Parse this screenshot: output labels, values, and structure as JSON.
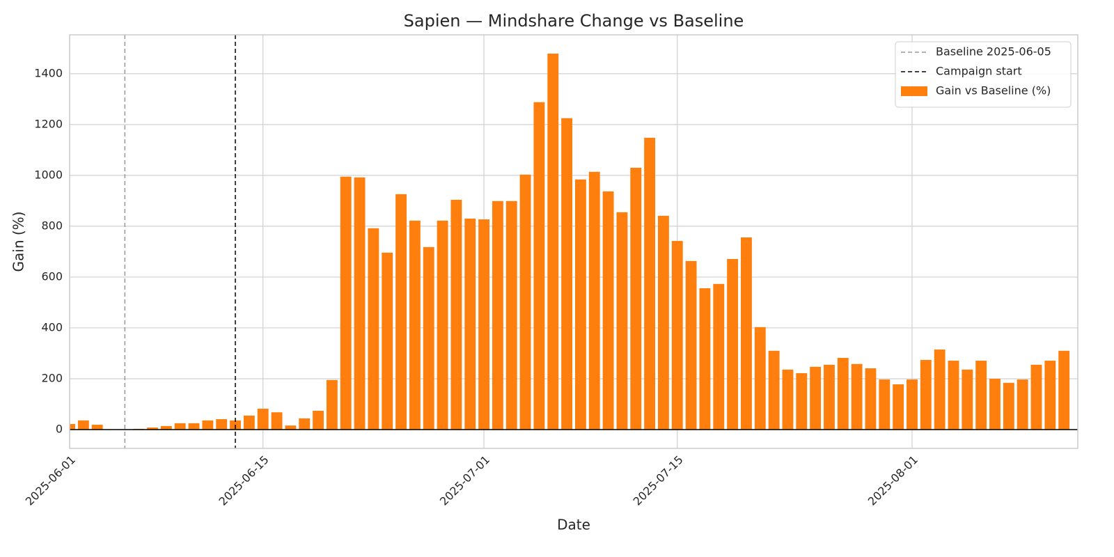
{
  "chart_data": {
    "type": "bar",
    "title": "Sapien — Mindshare Change vs Baseline",
    "xlabel": "Date",
    "ylabel": "Gain (%)",
    "x": [
      "2025-06-01",
      "2025-06-02",
      "2025-06-03",
      "2025-06-04",
      "2025-06-05",
      "2025-06-06",
      "2025-06-07",
      "2025-06-08",
      "2025-06-09",
      "2025-06-10",
      "2025-06-11",
      "2025-06-12",
      "2025-06-13",
      "2025-06-14",
      "2025-06-15",
      "2025-06-16",
      "2025-06-17",
      "2025-06-18",
      "2025-06-19",
      "2025-06-20",
      "2025-06-21",
      "2025-06-22",
      "2025-06-23",
      "2025-06-24",
      "2025-06-25",
      "2025-06-26",
      "2025-06-27",
      "2025-06-28",
      "2025-06-29",
      "2025-06-30",
      "2025-07-01",
      "2025-07-02",
      "2025-07-03",
      "2025-07-04",
      "2025-07-05",
      "2025-07-06",
      "2025-07-07",
      "2025-07-08",
      "2025-07-09",
      "2025-07-10",
      "2025-07-11",
      "2025-07-12",
      "2025-07-13",
      "2025-07-14",
      "2025-07-15",
      "2025-07-16",
      "2025-07-17",
      "2025-07-18",
      "2025-07-19",
      "2025-07-20",
      "2025-07-21",
      "2025-07-22",
      "2025-07-23",
      "2025-07-24",
      "2025-07-25",
      "2025-07-26",
      "2025-07-27",
      "2025-07-28",
      "2025-07-29",
      "2025-07-30",
      "2025-07-31",
      "2025-08-01",
      "2025-08-02",
      "2025-08-03",
      "2025-08-04",
      "2025-08-05",
      "2025-08-06",
      "2025-08-07",
      "2025-08-08",
      "2025-08-09",
      "2025-08-10",
      "2025-08-11",
      "2025-08-12"
    ],
    "series": [
      {
        "name": "Gain vs Baseline (%)",
        "color": "#ff7f0e",
        "values": [
          22,
          36,
          19,
          0,
          0,
          3,
          8,
          14,
          25,
          25,
          36,
          41,
          36,
          55,
          82,
          68,
          16,
          44,
          74,
          195,
          995,
          992,
          792,
          696,
          926,
          822,
          718,
          822,
          904,
          830,
          827,
          899,
          899,
          1003,
          1288,
          1479,
          1225,
          984,
          1014,
          937,
          855,
          1030,
          1148,
          841,
          742,
          663,
          556,
          573,
          671,
          756,
          403,
          310,
          236,
          222,
          247,
          255,
          282,
          258,
          241,
          197,
          178,
          197,
          274,
          315,
          271,
          236,
          271,
          200,
          184,
          197,
          255,
          271,
          310
        ]
      }
    ],
    "vlines": [
      {
        "x": "2025-06-05",
        "label": "Baseline 2025-06-05",
        "color": "#999999"
      },
      {
        "x": "2025-06-13",
        "label": "Campaign start",
        "color": "#000000"
      }
    ],
    "hlines": [
      0
    ],
    "xlim": [
      "2025-06-01",
      "2025-08-13"
    ],
    "xticks": [
      "2025-06-01",
      "2025-06-15",
      "2025-07-01",
      "2025-07-15",
      "2025-08-01"
    ],
    "ylim": [
      -74,
      1553
    ],
    "yticks": [
      0,
      200,
      400,
      600,
      800,
      1000,
      1200,
      1400
    ],
    "grid": true,
    "legend": "upper right"
  }
}
